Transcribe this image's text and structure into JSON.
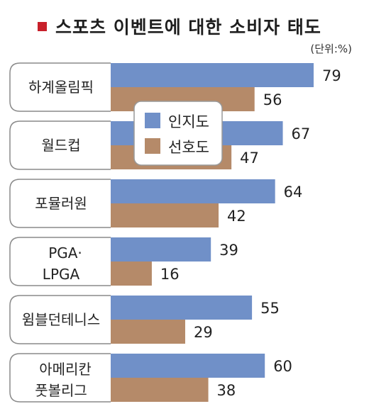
{
  "chart_data": {
    "type": "bar",
    "title": "스포츠 이벤트에 대한 소비자 태도",
    "unit": "(단위:%)",
    "categories": [
      [
        "하계올림픽"
      ],
      [
        "월드컵"
      ],
      [
        "포뮬러원"
      ],
      [
        "PGA·",
        "LPGA"
      ],
      [
        "윔블던테니스"
      ],
      [
        "아메리칸",
        "풋볼리그"
      ]
    ],
    "series": [
      {
        "name": "인지도",
        "values": [
          79,
          67,
          64,
          39,
          55,
          60
        ],
        "color": "#7090c8"
      },
      {
        "name": "선호도",
        "values": [
          56,
          47,
          42,
          16,
          29,
          38
        ],
        "color": "#b58a69"
      }
    ],
    "xlim": [
      0,
      100
    ],
    "orientation": "horizontal",
    "legend": "top-center",
    "grid": false,
    "title_marker_color": "#c8202a"
  }
}
